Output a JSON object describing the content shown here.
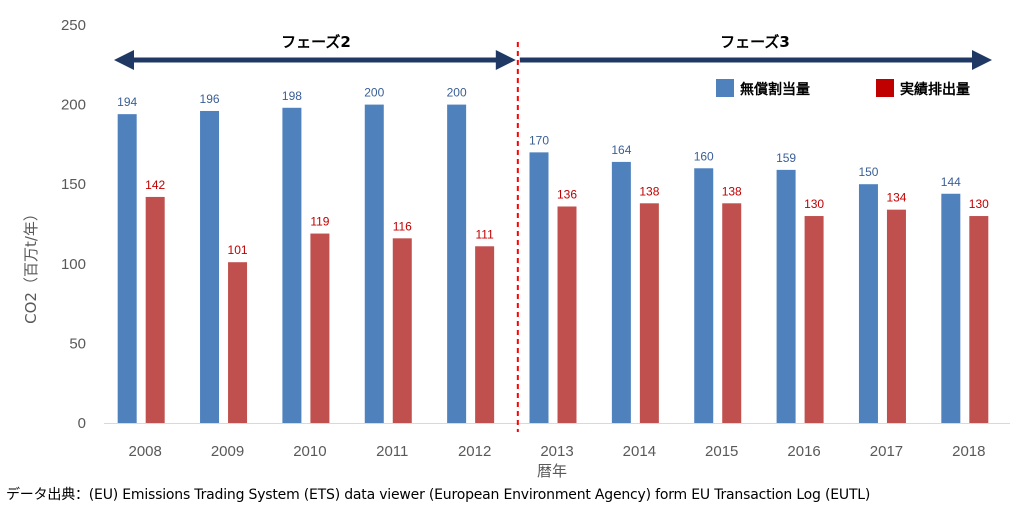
{
  "chart_data": {
    "type": "bar",
    "categories": [
      "2008",
      "2009",
      "2010",
      "2011",
      "2012",
      "2013",
      "2014",
      "2015",
      "2016",
      "2017",
      "2018"
    ],
    "series": [
      {
        "name": "無償割当量",
        "values": [
          194,
          196,
          198,
          200,
          200,
          170,
          164,
          160,
          159,
          150,
          144
        ],
        "color": "#4f81bd",
        "label_color": "#3a5f96"
      },
      {
        "name": "実績排出量",
        "values": [
          142,
          101,
          119,
          116,
          111,
          136,
          138,
          138,
          130,
          134,
          130
        ],
        "color": "#c0504d",
        "label_color": "#c00000"
      }
    ],
    "ylabel": "CO2（百万t/年）",
    "xlabel": "暦年",
    "ylim": [
      0,
      250
    ],
    "yticks": [
      0,
      50,
      100,
      150,
      200,
      250
    ],
    "grid": false,
    "legend_position": "top-right",
    "phases": [
      {
        "label": "フェーズ2",
        "from": "2008",
        "to": "2012"
      },
      {
        "label": "フェーズ3",
        "from": "2013",
        "to": "2018"
      }
    ],
    "divider_after": "2012",
    "divider_color": "#ff0000",
    "arrow_color": "#1f3864",
    "legend_colors": [
      "#4f81bd",
      "#c00000"
    ]
  },
  "source_note": "データ出典：(EU) Emissions Trading System (ETS) data viewer (European Environment Agency) form EU Transaction Log (EUTL)"
}
